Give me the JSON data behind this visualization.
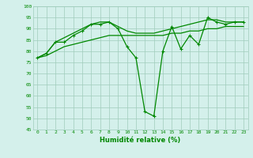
{
  "xlabel": "Humidité relative (%)",
  "background_color": "#d4f0eb",
  "grid_color": "#a0ccbb",
  "line_color": "#008800",
  "x": [
    0,
    1,
    2,
    3,
    4,
    5,
    6,
    7,
    8,
    9,
    10,
    11,
    12,
    13,
    14,
    15,
    16,
    17,
    18,
    19,
    20,
    21,
    22,
    23
  ],
  "y_main": [
    77,
    79,
    84,
    84,
    87,
    89,
    92,
    92,
    93,
    90,
    82,
    77,
    53,
    51,
    80,
    91,
    81,
    87,
    83,
    95,
    93,
    92,
    93,
    93
  ],
  "y_upper": [
    77,
    79,
    84,
    86,
    88,
    90,
    92,
    93,
    93,
    91,
    89,
    88,
    88,
    88,
    89,
    90,
    91,
    92,
    93,
    94,
    94,
    93,
    93,
    93
  ],
  "y_lower": [
    77,
    78,
    80,
    82,
    83,
    84,
    85,
    86,
    87,
    87,
    87,
    87,
    87,
    87,
    87,
    88,
    88,
    89,
    89,
    90,
    90,
    91,
    91,
    91
  ],
  "ylim": [
    45,
    100
  ],
  "xlim": [
    -0.5,
    23.5
  ],
  "yticks": [
    45,
    50,
    55,
    60,
    65,
    70,
    75,
    80,
    85,
    90,
    95,
    100
  ],
  "xticks": [
    0,
    1,
    2,
    3,
    4,
    5,
    6,
    7,
    8,
    9,
    10,
    11,
    12,
    13,
    14,
    15,
    16,
    17,
    18,
    19,
    20,
    21,
    22,
    23
  ]
}
